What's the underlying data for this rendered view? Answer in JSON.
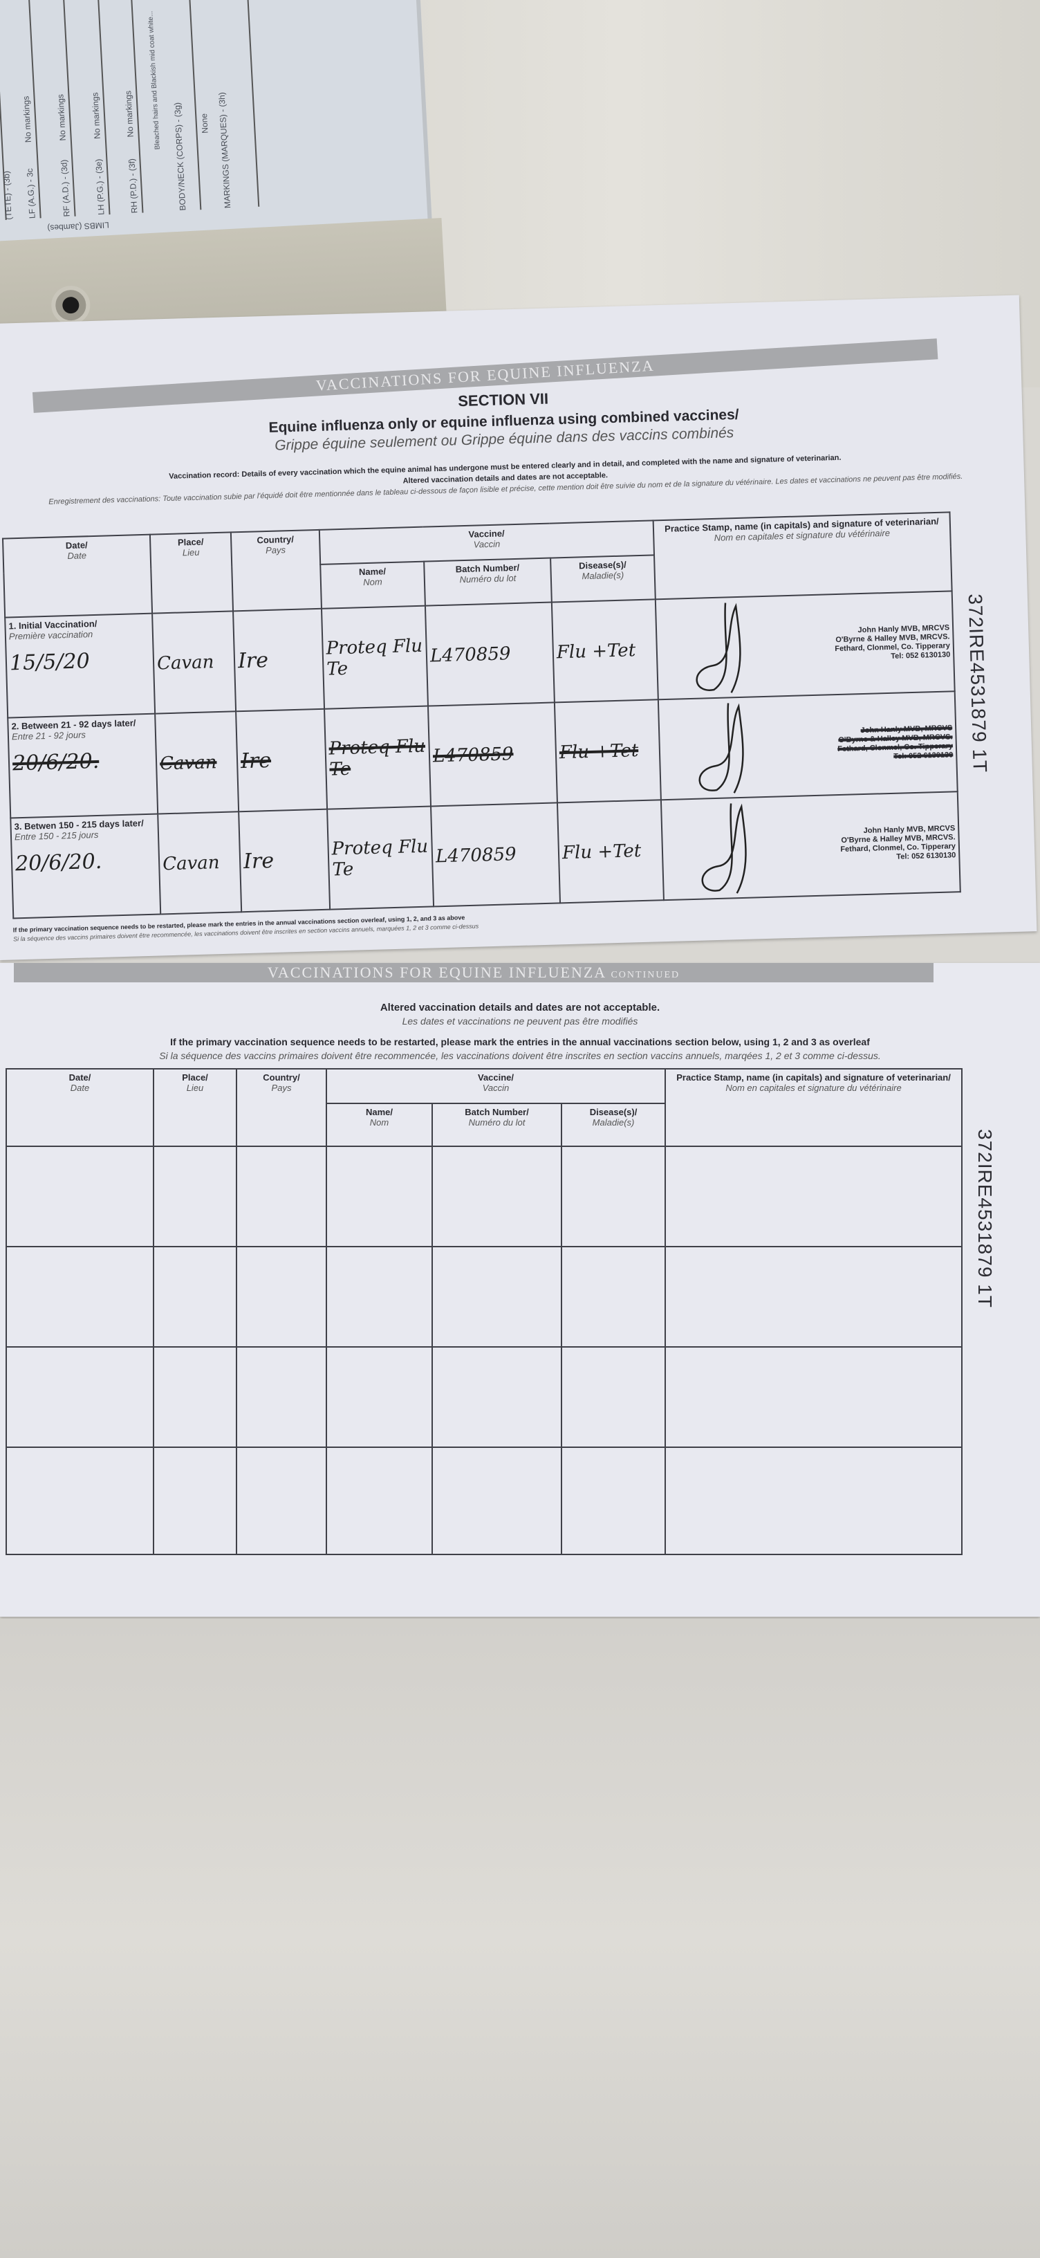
{
  "background_card": {
    "rows": [
      {
        "label": "(TETE) - (3b)",
        "value": ""
      },
      {
        "label": "LF (A.G.) - 3c",
        "value": "No markings"
      },
      {
        "label": "RF (A.D.) - (3d)",
        "value": "No markings"
      },
      {
        "label": "LH (P.G.) - (3e)",
        "value": "No markings"
      },
      {
        "label": "RH (P.D.) - (3f)",
        "value": "No markings"
      },
      {
        "label": "BODY/NECK (CORPS) - (3g)",
        "value": "Bleached hairs and Blackish mid coat white..."
      },
      {
        "label": "MARKINGS (MARQUES) - (3h)",
        "value": "None"
      }
    ],
    "limbs_label": "LIMBS (Jambes)"
  },
  "section1": {
    "band_title": "VACCINATIONS FOR EQUINE INFLUENZA",
    "section": "SECTION VII",
    "subtitle": "Equine influenza only or equine influenza using combined vaccines/",
    "subtitle_fr": "Grippe équine seulement ou Grippe équine dans des vaccins combinés",
    "record_note": "Vaccination record: Details of every vaccination which the equine animal has undergone must be entered clearly and in detail, and completed with the name and signature of veterinarian.",
    "altered_note": "Altered vaccination details and dates are not acceptable.",
    "record_note_fr": "Enregistrement des vaccinations: Toute vaccination subie par l'équidé doit être mentionnée dans le tableau ci-dessous de façon lisible et précise, cette mention doit être suivie du nom et de la signature du vétérinaire. Les dates et vaccinations ne peuvent pas être modifiés.",
    "headers": {
      "date": "Date/",
      "date_fr": "Date",
      "place": "Place/",
      "place_fr": "Lieu",
      "country": "Country/",
      "country_fr": "Pays",
      "vaccine": "Vaccine/",
      "vaccine_fr": "Vaccin",
      "name": "Name/",
      "name_fr": "Nom",
      "batch": "Batch Number/",
      "batch_fr": "Numéro du lot",
      "disease": "Disease(s)/",
      "disease_fr": "Maladie(s)",
      "stamp": "Practice Stamp, name (in capitals) and signature of veterinarian/",
      "stamp_fr": "Nom en capitales et signature du vétérinaire"
    },
    "rows": [
      {
        "label": "1. Initial Vaccination/",
        "label_fr": "Première vaccination",
        "date": "15/5/20",
        "place": "Cavan",
        "country": "Ire",
        "name": "Proteq Flu Te",
        "batch": "L470859",
        "disease": "Flu +Tet",
        "struck": false,
        "stamp": [
          "John Hanly MVB, MRCVS",
          "O'Byrne & Halley MVB, MRCVS.",
          "Fethard, Clonmel, Co. Tipperary",
          "Tel: 052 6130130"
        ]
      },
      {
        "label": "2. Between 21 - 92 days later/",
        "label_fr": "Entre 21 - 92 jours",
        "date": "20/6/20.",
        "place": "Cavan",
        "country": "Ire",
        "name": "Proteq Flu Te",
        "batch": "L470859",
        "disease": "Flu +Tet",
        "struck": true,
        "stamp": [
          "John Hanly MVB, MRCVS",
          "O'Byrne & Halley MVB, MRCVS.",
          "Fethard, Clonmel, Co. Tipperary",
          "Tel: 052 6130130"
        ]
      },
      {
        "label": "3. Betwen 150 - 215 days later/",
        "label_fr": "Entre 150 - 215 jours",
        "date": "20/6/20.",
        "place": "Cavan",
        "country": "Ire",
        "name": "Proteq Flu Te",
        "batch": "L470859",
        "disease": "Flu +Tet",
        "struck": false,
        "stamp": [
          "John Hanly MVB, MRCVS",
          "O'Byrne & Halley MVB, MRCVS.",
          "Fethard, Clonmel, Co. Tipperary",
          "Tel: 052 6130130"
        ]
      }
    ],
    "footer": "If the primary vaccination sequence needs to be restarted, please mark the entries in the annual vaccinations section overleaf, using 1, 2, and 3 as above",
    "footer_fr": "Si la séquence des vaccins primaires doivent être recommencée, les vaccinations doivent être inscrites en section vaccins annuels, marquées 1, 2 et 3 comme ci-dessus",
    "id_number": "372IRE4531879 1T"
  },
  "section2": {
    "band_title": "VACCINATIONS FOR EQUINE INFLUENZA",
    "band_suffix": "CONTINUED",
    "altered_note": "Altered vaccination details and dates are not acceptable.",
    "altered_note_fr": "Les dates et vaccinations ne peuvent pas être modifiés",
    "restart_note": "If the primary vaccination sequence needs to be restarted, please mark the entries in the annual vaccinations section below, using 1, 2 and 3 as overleaf",
    "restart_note_fr": "Si la séquence des vaccins primaires doivent être recommencée, les vaccinations doivent être inscrites en section vaccins annuels, marqées 1, 2 et 3 comme ci-dessus.",
    "id_number": "372IRE4531879 1T",
    "empty_rows": 4
  }
}
